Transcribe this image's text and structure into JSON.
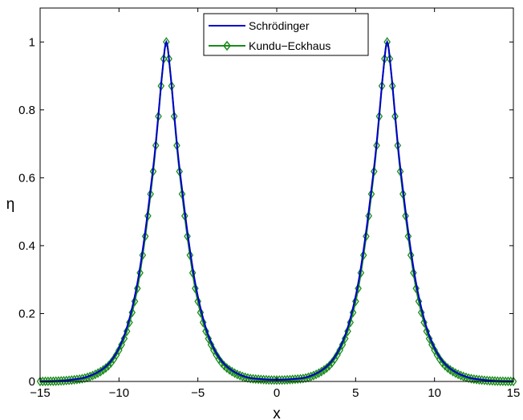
{
  "chart_data": {
    "type": "line",
    "title": "",
    "xlabel": "x",
    "ylabel": "η",
    "xlim": [
      -15,
      15
    ],
    "ylim": [
      0,
      1.1
    ],
    "xticks": [
      -15,
      -10,
      -5,
      0,
      5,
      10,
      15
    ],
    "xtick_labels": [
      "−15",
      "−10",
      "−5",
      "0",
      "5",
      "10",
      "15"
    ],
    "yticks": [
      0,
      0.2,
      0.4,
      0.6,
      0.8,
      1
    ],
    "ytick_labels": [
      "0",
      "0.2",
      "0.4",
      "0.6",
      "0.8",
      "1"
    ],
    "grid": false,
    "legend_position": "top-center",
    "x": [
      -15,
      -14,
      -13,
      -12,
      -11,
      -10.5,
      -10,
      -9.5,
      -9,
      -8.75,
      -8.5,
      -8.25,
      -8,
      -7.75,
      -7.5,
      -7.25,
      -7,
      -6.75,
      -6.5,
      -6.25,
      -6,
      -5.75,
      -5.5,
      -5.25,
      -5,
      -4.5,
      -4,
      -3.5,
      -3,
      -2,
      -1,
      0,
      1,
      2,
      3,
      3.5,
      4,
      4.5,
      5,
      5.25,
      5.5,
      5.75,
      6,
      6.25,
      6.5,
      6.75,
      7,
      7.25,
      7.5,
      7.75,
      8,
      8.25,
      8.5,
      8.75,
      9,
      9.5,
      10,
      10.5,
      11,
      12,
      13,
      14,
      15
    ],
    "series": [
      {
        "name": "Schrödinger",
        "color": "#0000cc",
        "marker": "none",
        "values": [
          0.0,
          0.001,
          0.005,
          0.014,
          0.038,
          0.061,
          0.099,
          0.159,
          0.251,
          0.312,
          0.387,
          0.472,
          0.566,
          0.665,
          0.787,
          0.913,
          1.0,
          0.913,
          0.787,
          0.665,
          0.566,
          0.472,
          0.387,
          0.312,
          0.251,
          0.159,
          0.099,
          0.061,
          0.038,
          0.014,
          0.007,
          0.005,
          0.007,
          0.014,
          0.038,
          0.061,
          0.099,
          0.159,
          0.251,
          0.312,
          0.387,
          0.472,
          0.566,
          0.665,
          0.787,
          0.913,
          1.0,
          0.913,
          0.787,
          0.665,
          0.566,
          0.472,
          0.387,
          0.312,
          0.251,
          0.159,
          0.099,
          0.061,
          0.038,
          0.014,
          0.005,
          0.001,
          0.0
        ]
      },
      {
        "name": "Kundu−Eckhaus",
        "color": "#1a8a1a",
        "marker": "diamond",
        "values": [
          0.0,
          0.001,
          0.004,
          0.012,
          0.034,
          0.055,
          0.092,
          0.148,
          0.236,
          0.296,
          0.372,
          0.457,
          0.552,
          0.655,
          0.781,
          0.911,
          1.0,
          0.911,
          0.781,
          0.655,
          0.552,
          0.457,
          0.372,
          0.296,
          0.236,
          0.148,
          0.092,
          0.055,
          0.034,
          0.012,
          0.006,
          0.004,
          0.006,
          0.012,
          0.034,
          0.055,
          0.092,
          0.148,
          0.236,
          0.296,
          0.372,
          0.457,
          0.552,
          0.655,
          0.781,
          0.911,
          1.0,
          0.911,
          0.781,
          0.655,
          0.552,
          0.457,
          0.372,
          0.296,
          0.236,
          0.148,
          0.092,
          0.055,
          0.034,
          0.012,
          0.004,
          0.001,
          0.0
        ]
      }
    ]
  }
}
